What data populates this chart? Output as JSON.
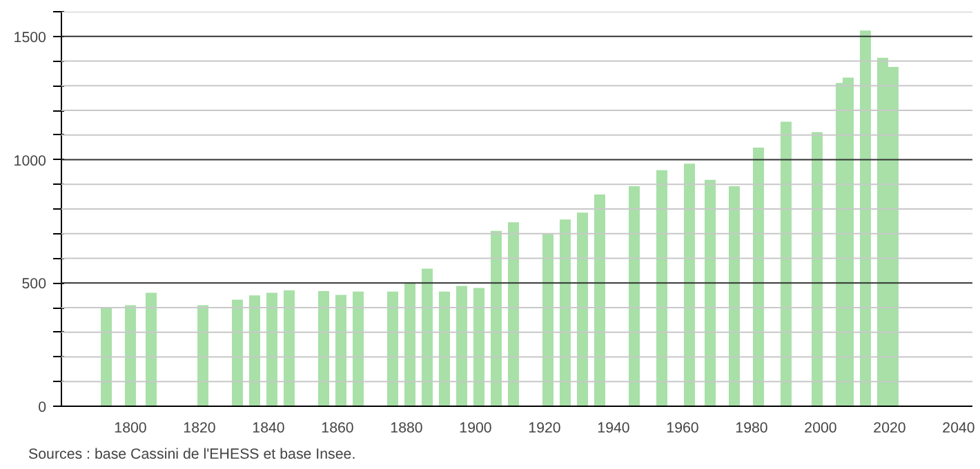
{
  "chart_data": {
    "type": "bar",
    "x": [
      1793,
      1800,
      1806,
      1821,
      1831,
      1836,
      1841,
      1846,
      1856,
      1861,
      1866,
      1876,
      1881,
      1886,
      1891,
      1896,
      1901,
      1906,
      1911,
      1921,
      1926,
      1931,
      1936,
      1946,
      1954,
      1962,
      1968,
      1975,
      1982,
      1990,
      1999,
      2006,
      2008,
      2013,
      2018,
      2021
    ],
    "values": [
      400,
      410,
      460,
      410,
      432,
      450,
      460,
      470,
      467,
      452,
      465,
      465,
      502,
      558,
      465,
      488,
      480,
      711,
      746,
      702,
      757,
      785,
      859,
      892,
      957,
      984,
      918,
      892,
      1049,
      1154,
      1112,
      1311,
      1333,
      1524,
      1413,
      1376
    ],
    "color": "#a8e0a8",
    "xlim": [
      1780,
      2044
    ],
    "ylim": [
      0,
      1600
    ],
    "xticks": [
      1800,
      1820,
      1840,
      1860,
      1880,
      1900,
      1920,
      1940,
      1960,
      1980,
      2000,
      2020,
      2040
    ],
    "yticks": [
      0,
      {
        "value": 100,
        "label": null
      },
      {
        "value": 200,
        "label": null
      },
      {
        "value": 300,
        "label": null
      },
      {
        "value": 400,
        "label": null
      },
      500,
      {
        "value": 600,
        "label": null
      },
      {
        "value": 700,
        "label": null
      },
      {
        "value": 800,
        "label": null
      },
      {
        "value": 900,
        "label": null
      },
      1000,
      {
        "value": 1100,
        "label": null
      },
      {
        "value": 1200,
        "label": null
      },
      {
        "value": 1300,
        "label": null
      },
      {
        "value": 1400,
        "label": null
      },
      1500,
      {
        "value": 1600,
        "label": null
      }
    ],
    "grid": "y",
    "annotations": [
      "Sources : base Cassini de l'EHESS et base Insee."
    ]
  }
}
